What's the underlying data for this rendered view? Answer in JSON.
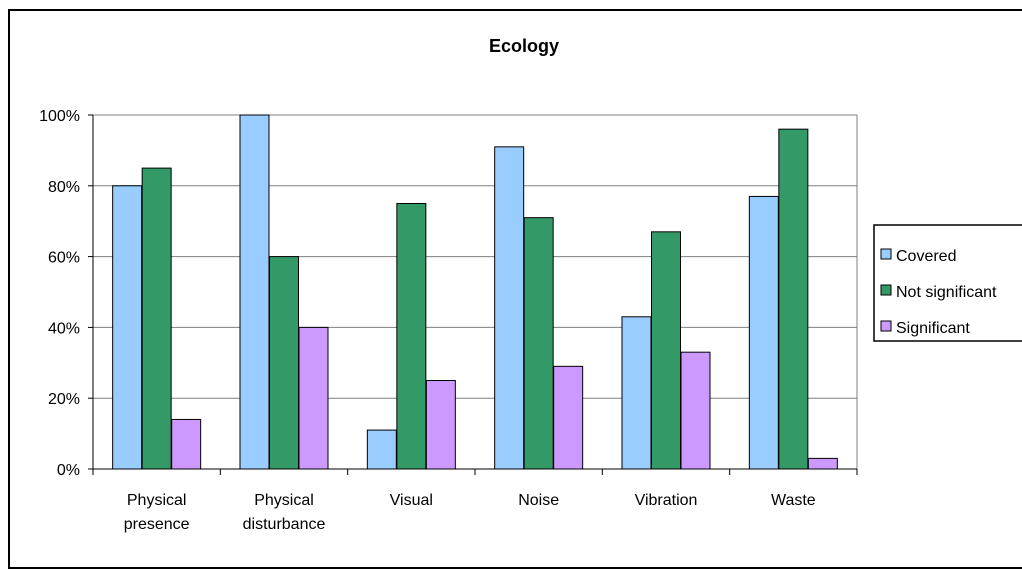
{
  "chart_data": {
    "type": "bar",
    "title": "Ecology",
    "categories": [
      [
        "Physical",
        "presence"
      ],
      [
        "Physical",
        "disturbance"
      ],
      [
        "Visual"
      ],
      [
        "Noise"
      ],
      [
        "Vibration"
      ],
      [
        "Waste"
      ]
    ],
    "series": [
      {
        "name": "Covered",
        "color": "#99ccff",
        "values": [
          80,
          100,
          11,
          91,
          43,
          77
        ]
      },
      {
        "name": "Not significant",
        "color": "#339966",
        "values": [
          85,
          60,
          75,
          71,
          67,
          96
        ]
      },
      {
        "name": "Significant",
        "color": "#cc99ff",
        "values": [
          14,
          40,
          25,
          29,
          33,
          3
        ]
      }
    ],
    "ylim": [
      0,
      100
    ],
    "yticks": [
      "0%",
      "20%",
      "40%",
      "60%",
      "80%",
      "100%"
    ],
    "ytick_values": [
      0,
      20,
      40,
      60,
      80,
      100
    ],
    "grid": true,
    "legend_position": "right"
  }
}
